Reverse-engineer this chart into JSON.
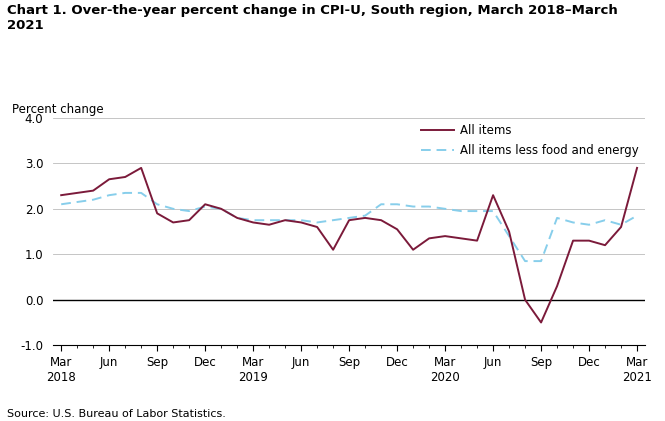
{
  "title_line1": "Chart 1. Over-the-year percent change in CPI-U, South region, March 2018–March",
  "title_line2": "2021",
  "ylabel": "Percent change",
  "source": "Source: U.S. Bureau of Labor Statistics.",
  "ylim": [
    -1.0,
    4.0
  ],
  "yticks": [
    -1.0,
    0.0,
    1.0,
    2.0,
    3.0,
    4.0
  ],
  "x_tick_labels": [
    "Mar\n2018",
    "Jun",
    "Sep",
    "Dec",
    "Mar\n2019",
    "Jun",
    "Sep",
    "Dec",
    "Mar\n2020",
    "Jun",
    "Sep",
    "Dec",
    "Mar\n2021"
  ],
  "all_items": [
    2.3,
    2.35,
    2.4,
    2.65,
    2.7,
    2.9,
    1.9,
    1.7,
    1.75,
    2.1,
    2.0,
    1.8,
    1.7,
    1.65,
    1.75,
    1.7,
    1.6,
    1.1,
    1.75,
    1.8,
    1.75,
    1.55,
    1.1,
    1.35,
    1.4,
    1.35,
    1.3,
    2.3,
    1.5,
    0.0,
    -0.5,
    0.3,
    1.3,
    1.3,
    1.2,
    1.6,
    2.9
  ],
  "all_items_less": [
    2.1,
    2.15,
    2.2,
    2.3,
    2.35,
    2.35,
    2.1,
    2.0,
    1.95,
    2.05,
    2.0,
    1.8,
    1.75,
    1.75,
    1.75,
    1.75,
    1.7,
    1.75,
    1.8,
    1.85,
    2.1,
    2.1,
    2.05,
    2.05,
    2.0,
    1.95,
    1.95,
    1.95,
    1.4,
    0.85,
    0.85,
    1.8,
    1.7,
    1.65,
    1.75,
    1.65,
    1.85
  ],
  "all_items_color": "#7b1a3a",
  "all_items_less_color": "#87ceeb",
  "background_color": "#ffffff",
  "grid_color": "#bbbbbb"
}
